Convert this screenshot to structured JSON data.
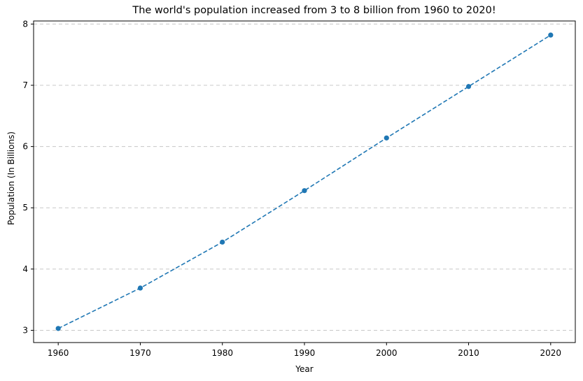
{
  "chart_data": {
    "type": "line",
    "title": "The world's population increased from 3 to 8 billion from 1960 to 2020!",
    "xlabel": "Year",
    "ylabel": "Population (In Billions)",
    "x": [
      1960,
      1970,
      1980,
      1990,
      2000,
      2010,
      2020
    ],
    "series": [
      {
        "values": [
          3.03,
          3.69,
          4.44,
          5.28,
          6.14,
          6.98,
          7.82
        ],
        "color": "#1f77b4"
      }
    ],
    "xticks": [
      1960,
      1970,
      1980,
      1990,
      2000,
      2010,
      2020
    ],
    "yticks": [
      3,
      4,
      5,
      6,
      7,
      8
    ],
    "xlim": [
      1957,
      2023
    ],
    "ylim": [
      2.8,
      8.05
    ],
    "grid": "y-dashed",
    "legend": "none"
  }
}
